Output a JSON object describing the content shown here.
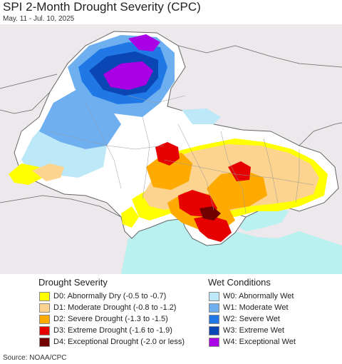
{
  "header": {
    "title": "SPI 2-Month Drought Severity (CPC)",
    "date_range": "May. 11 - Jul. 10, 2025"
  },
  "map": {
    "colors": {
      "sea": "#b9f0f0",
      "land_outside": "#ece8ec",
      "land_normal": "#ffffff",
      "border": "#888888"
    }
  },
  "legend": {
    "drought_title": "Drought Severity",
    "wet_title": "Wet Conditions",
    "drought": [
      {
        "label": "D0: Abnormally Dry (-0.5 to -0.7)",
        "color": "#ffff00"
      },
      {
        "label": "D1: Moderate Drought (-0.8 to -1.2)",
        "color": "#fcd38f"
      },
      {
        "label": "D2: Severe Drought (-1.3 to -1.5)",
        "color": "#ffaa00"
      },
      {
        "label": "D3: Extreme Drought (-1.6 to -1.9)",
        "color": "#e60000"
      },
      {
        "label": "D4: Exceptional Drought (-2.0 or less)",
        "color": "#730000"
      }
    ],
    "wet": [
      {
        "label": "W0: Abnormally Wet",
        "color": "#bde8f7"
      },
      {
        "label": "W1: Moderate Wet",
        "color": "#6eaff0"
      },
      {
        "label": "W2: Severe Wet",
        "color": "#1f78e6"
      },
      {
        "label": "W3: Extreme Wet",
        "color": "#0a46b4"
      },
      {
        "label": "W4: Exceptional Wet",
        "color": "#aa00e6"
      }
    ]
  },
  "footer": {
    "source": "Source: NOAA/CPC"
  }
}
